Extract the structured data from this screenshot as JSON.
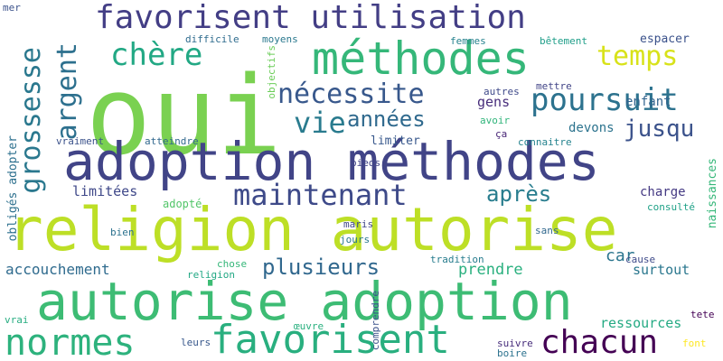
{
  "words": [
    {
      "text": "oui",
      "color": "#7ad151"
    },
    {
      "text": "religion autorise",
      "color": "#bddf26"
    },
    {
      "text": "autorise adoption",
      "color": "#3dbc74"
    },
    {
      "text": "adoption méthodes",
      "color": "#414487"
    },
    {
      "text": "favorisent utilisation",
      "color": "#433e85"
    },
    {
      "text": "méthodes",
      "color": "#35b779"
    },
    {
      "text": "normes",
      "color": "#2db27d"
    },
    {
      "text": "favorisent",
      "color": "#29af7f"
    },
    {
      "text": "chacun",
      "color": "#440154"
    },
    {
      "text": "maintenant",
      "color": "#3e4a89"
    },
    {
      "text": "poursuit",
      "color": "#2c728e"
    },
    {
      "text": "nécessite",
      "color": "#38588c"
    },
    {
      "text": "chère",
      "color": "#22a884"
    },
    {
      "text": "temps",
      "color": "#d8e219"
    },
    {
      "text": "grossesse",
      "color": "#2a788e"
    },
    {
      "text": "argent",
      "color": "#2d708e"
    },
    {
      "text": "vie",
      "color": "#297b8e"
    },
    {
      "text": "années",
      "color": "#306a8e"
    },
    {
      "text": "jusqu",
      "color": "#3b528b"
    },
    {
      "text": "plusieurs",
      "color": "#31688e"
    },
    {
      "text": "après",
      "color": "#287d8e"
    },
    {
      "text": "accouchement",
      "color": "#2f6b8e"
    },
    {
      "text": "prendre",
      "color": "#2ab07f"
    },
    {
      "text": "ressources",
      "color": "#24aa83"
    },
    {
      "text": "surtout",
      "color": "#2a778e"
    },
    {
      "text": "car",
      "color": "#2b758e"
    },
    {
      "text": "limitées",
      "color": "#3f4889"
    },
    {
      "text": "charge",
      "color": "#443983"
    },
    {
      "text": "enfant",
      "color": "#32648e"
    },
    {
      "text": "devons",
      "color": "#2c738e"
    },
    {
      "text": "gens",
      "color": "#472d7b"
    },
    {
      "text": "espacer",
      "color": "#3b528b"
    },
    {
      "text": "obligés adopter",
      "color": "#2d708e"
    },
    {
      "text": "naissances",
      "color": "#35b779"
    },
    {
      "text": "limiter",
      "color": "#38588c"
    },
    {
      "text": "difficile",
      "color": "#2f6c8e"
    },
    {
      "text": "moyens",
      "color": "#2a788e"
    },
    {
      "text": "objectifs",
      "color": "#6ccd5a"
    },
    {
      "text": "femmes",
      "color": "#26828e"
    },
    {
      "text": "bêtement",
      "color": "#1f9e89"
    },
    {
      "text": "mettre",
      "color": "#414487"
    },
    {
      "text": "autres",
      "color": "#3e4989"
    },
    {
      "text": "avoir",
      "color": "#31b57b"
    },
    {
      "text": "ça",
      "color": "#482576"
    },
    {
      "text": "connaitre",
      "color": "#25838e"
    },
    {
      "text": "vraiment",
      "color": "#3b528b"
    },
    {
      "text": "atteindre",
      "color": "#31688e"
    },
    {
      "text": "pieds",
      "color": "#414487"
    },
    {
      "text": "adopté",
      "color": "#52c569"
    },
    {
      "text": "consulté",
      "color": "#1fa187"
    },
    {
      "text": "maris",
      "color": "#3f4788"
    },
    {
      "text": "bien",
      "color": "#2c728e"
    },
    {
      "text": "jours",
      "color": "#2a788e"
    },
    {
      "text": "sans",
      "color": "#31688e"
    },
    {
      "text": "tradition",
      "color": "#287d8e"
    },
    {
      "text": "cause",
      "color": "#3e4a89"
    },
    {
      "text": "chose",
      "color": "#35b779"
    },
    {
      "text": "religion",
      "color": "#22a884"
    },
    {
      "text": "tete",
      "color": "#440154"
    },
    {
      "text": "comprendre",
      "color": "#3b528b"
    },
    {
      "text": "œuvre",
      "color": "#2ab07f"
    },
    {
      "text": "leurs",
      "color": "#38588c"
    },
    {
      "text": "vrai",
      "color": "#27ad81"
    },
    {
      "text": "suivre",
      "color": "#472d7b"
    },
    {
      "text": "boire",
      "color": "#2c728e"
    },
    {
      "text": "font",
      "color": "#fde725"
    },
    {
      "text": "mer",
      "color": "#3b528b"
    }
  ]
}
